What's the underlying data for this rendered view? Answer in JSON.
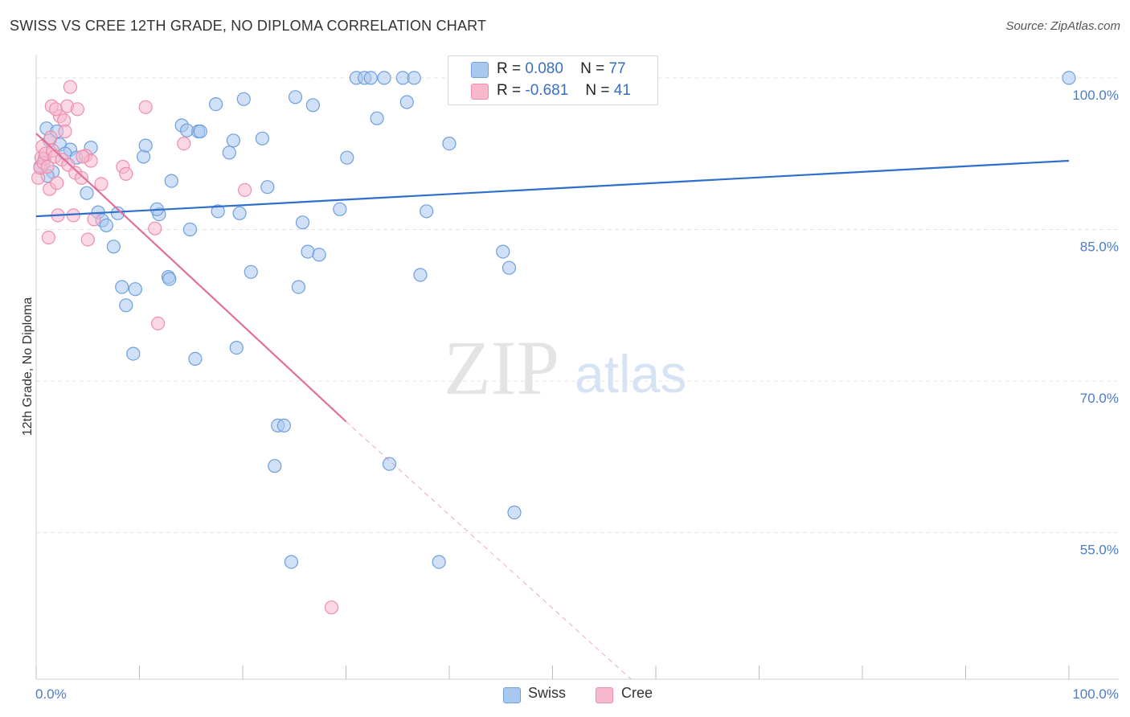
{
  "header": {
    "title": "SWISS VS CREE 12TH GRADE, NO DIPLOMA CORRELATION CHART",
    "source": "Source: ZipAtlas.com"
  },
  "watermark": {
    "zip": "ZIP",
    "atlas": "atlas"
  },
  "legend": {
    "swiss": {
      "r_label": "R =",
      "r_value": "0.080",
      "n_label": "N =",
      "n_value": "77"
    },
    "cree": {
      "r_label": "R =",
      "r_value": "-0.681",
      "n_label": "N =",
      "n_value": "41"
    }
  },
  "bottom_legend": {
    "swiss": "Swiss",
    "cree": "Cree"
  },
  "colors": {
    "swiss_fill": "#a9c8f0",
    "swiss_stroke": "#6f9fdc",
    "swiss_line": "#2f6fcc",
    "cree_fill": "#f7b8cc",
    "cree_stroke": "#ec8fae",
    "cree_line": "#e0709a",
    "tick_label": "#4a7cc7",
    "grid": "#e3e3e3"
  },
  "chart_data": {
    "type": "scatter",
    "title": "SWISS VS CREE 12TH GRADE, NO DIPLOMA CORRELATION CHART",
    "xlabel": "",
    "ylabel": "12th Grade, No Diploma",
    "xlim": [
      0,
      100
    ],
    "ylim": [
      40.5,
      101.5
    ],
    "x_tick_labels": [
      "0.0%",
      "100.0%"
    ],
    "y_ticks": [
      55,
      70,
      85,
      100
    ],
    "y_tick_labels": [
      "55.0%",
      "70.0%",
      "85.0%",
      "100.0%"
    ],
    "grid": true,
    "series": [
      {
        "name": "Swiss",
        "points": [
          [
            1.0,
            95.0
          ],
          [
            2.0,
            94.7
          ],
          [
            1.3,
            93.8
          ],
          [
            2.3,
            93.4
          ],
          [
            3.3,
            92.9
          ],
          [
            5.3,
            93.1
          ],
          [
            2.8,
            92.5
          ],
          [
            3.9,
            92.1
          ],
          [
            1.6,
            90.7
          ],
          [
            1.1,
            90.3
          ],
          [
            4.9,
            88.6
          ],
          [
            6.0,
            86.7
          ],
          [
            7.9,
            86.6
          ],
          [
            6.4,
            85.9
          ],
          [
            6.8,
            85.4
          ],
          [
            7.5,
            83.3
          ],
          [
            8.3,
            79.3
          ],
          [
            9.6,
            79.1
          ],
          [
            8.7,
            77.5
          ],
          [
            9.4,
            72.7
          ],
          [
            10.4,
            92.2
          ],
          [
            10.6,
            93.3
          ],
          [
            11.9,
            86.5
          ],
          [
            11.7,
            87.0
          ],
          [
            12.8,
            80.3
          ],
          [
            12.9,
            80.1
          ],
          [
            13.1,
            89.8
          ],
          [
            14.1,
            95.3
          ],
          [
            14.6,
            94.8
          ],
          [
            15.7,
            94.7
          ],
          [
            14.9,
            85.0
          ],
          [
            15.4,
            72.2
          ],
          [
            15.9,
            94.7
          ],
          [
            17.4,
            97.4
          ],
          [
            17.6,
            86.8
          ],
          [
            18.7,
            92.6
          ],
          [
            19.1,
            93.8
          ],
          [
            19.4,
            73.3
          ],
          [
            19.7,
            86.6
          ],
          [
            20.1,
            97.9
          ],
          [
            20.8,
            80.8
          ],
          [
            21.9,
            94.0
          ],
          [
            22.4,
            89.2
          ],
          [
            23.1,
            61.6
          ],
          [
            23.4,
            65.6
          ],
          [
            24.0,
            65.6
          ],
          [
            24.7,
            52.1
          ],
          [
            25.1,
            98.1
          ],
          [
            25.4,
            79.3
          ],
          [
            25.8,
            85.7
          ],
          [
            26.3,
            82.8
          ],
          [
            26.8,
            97.3
          ],
          [
            27.4,
            82.5
          ],
          [
            29.4,
            87.0
          ],
          [
            30.1,
            92.1
          ],
          [
            31.0,
            100.0
          ],
          [
            31.8,
            100.0
          ],
          [
            32.4,
            100.0
          ],
          [
            33.0,
            96.0
          ],
          [
            33.7,
            100.0
          ],
          [
            34.2,
            61.8
          ],
          [
            35.5,
            100.0
          ],
          [
            35.9,
            97.6
          ],
          [
            36.6,
            100.0
          ],
          [
            37.2,
            80.5
          ],
          [
            37.8,
            86.8
          ],
          [
            39.0,
            52.1
          ],
          [
            40.0,
            93.5
          ],
          [
            41.4,
            100.0
          ],
          [
            43.1,
            100.0
          ],
          [
            44.2,
            100.0
          ],
          [
            45.2,
            82.8
          ],
          [
            45.8,
            81.2
          ],
          [
            46.3,
            57.0
          ],
          [
            100.0,
            100.0
          ],
          [
            0.4,
            91.2
          ],
          [
            0.8,
            92.0
          ]
        ]
      },
      {
        "name": "Cree",
        "points": [
          [
            0.2,
            90.1
          ],
          [
            0.4,
            91.1
          ],
          [
            0.5,
            92.1
          ],
          [
            0.6,
            93.2
          ],
          [
            0.7,
            91.6
          ],
          [
            0.9,
            92.5
          ],
          [
            1.1,
            91.2
          ],
          [
            1.3,
            89.0
          ],
          [
            1.4,
            94.1
          ],
          [
            1.5,
            97.2
          ],
          [
            1.6,
            92.8
          ],
          [
            1.8,
            92.2
          ],
          [
            2.0,
            89.6
          ],
          [
            2.1,
            86.4
          ],
          [
            2.3,
            96.2
          ],
          [
            2.5,
            91.9
          ],
          [
            2.7,
            95.8
          ],
          [
            2.8,
            94.7
          ],
          [
            3.0,
            97.2
          ],
          [
            3.1,
            91.4
          ],
          [
            3.3,
            99.1
          ],
          [
            3.6,
            86.4
          ],
          [
            3.8,
            90.6
          ],
          [
            4.0,
            96.9
          ],
          [
            4.4,
            90.1
          ],
          [
            4.8,
            92.3
          ],
          [
            5.0,
            84.0
          ],
          [
            5.3,
            91.8
          ],
          [
            5.6,
            86.0
          ],
          [
            6.3,
            89.5
          ],
          [
            8.4,
            91.2
          ],
          [
            8.7,
            90.5
          ],
          [
            10.6,
            97.1
          ],
          [
            11.5,
            85.1
          ],
          [
            11.8,
            75.7
          ],
          [
            14.3,
            93.5
          ],
          [
            20.2,
            88.9
          ],
          [
            1.2,
            84.2
          ],
          [
            1.9,
            96.9
          ],
          [
            4.5,
            92.2
          ],
          [
            28.6,
            47.6
          ]
        ]
      }
    ],
    "trend_lines": [
      {
        "series": "Swiss",
        "from": [
          0,
          86.3
        ],
        "to": [
          100,
          91.8
        ],
        "style": "solid"
      },
      {
        "series": "Cree",
        "from": [
          0,
          94.5
        ],
        "to": [
          30,
          66.0
        ],
        "style": "solid"
      },
      {
        "series": "Cree",
        "from": [
          30,
          66.0
        ],
        "to": [
          57.6,
          40.5
        ],
        "style": "dashed"
      }
    ]
  }
}
